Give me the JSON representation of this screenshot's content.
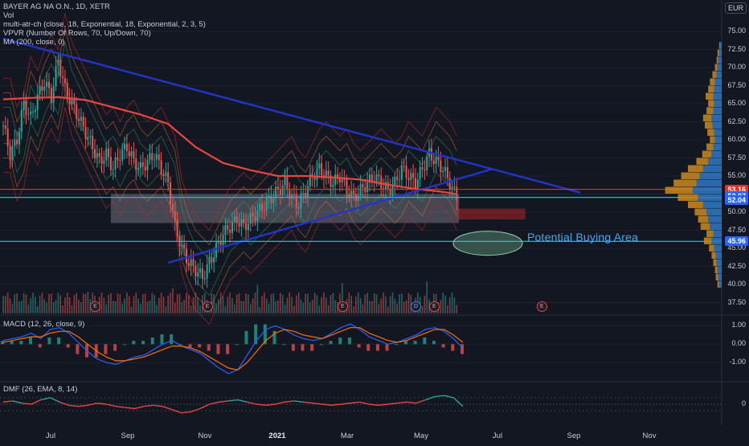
{
  "chart_data": [
    {
      "type": "candlestick",
      "pane": "price",
      "legend": [
        "BAYER AG NA O.N., 1D, XETR",
        "Vol",
        "multi-atr-ch (close, 18, Exponential, 18, Exponential, 2, 3, 5)",
        "VPVR (Number Of Rows, 70, Up/Down, 70)",
        "MA (200, close, 0)"
      ],
      "currency": "EUR",
      "ylim": [
        36,
        78
      ],
      "y_ticks": [
        "37.50",
        "40.00",
        "42.50",
        "45.00",
        "47.50",
        "50.00",
        "52.50",
        "55.00",
        "57.50",
        "60.00",
        "62.50",
        "65.00",
        "67.50",
        "70.00",
        "72.50",
        "75.00"
      ],
      "x_ticks": [
        {
          "label": "Jul",
          "bold": false
        },
        {
          "label": "Sep",
          "bold": false
        },
        {
          "label": "Nov",
          "bold": false
        },
        {
          "label": "2021",
          "bold": true
        },
        {
          "label": "Mar",
          "bold": false
        },
        {
          "label": "May",
          "bold": false
        },
        {
          "label": "Jul",
          "bold": false
        },
        {
          "label": "Sep",
          "bold": false
        },
        {
          "label": "Nov",
          "bold": false
        }
      ],
      "price_labels": [
        {
          "value": "53.16",
          "color": "#e03131"
        },
        {
          "value": "52.07",
          "color": "#2962ff"
        },
        {
          "value": "52.04",
          "color": "#2962ff"
        },
        {
          "value": "45.96",
          "color": "#2962ff"
        }
      ],
      "close_path": [
        {
          "t": 0,
          "v": 62
        },
        {
          "t": 3,
          "v": 58
        },
        {
          "t": 6,
          "v": 60
        },
        {
          "t": 9,
          "v": 65
        },
        {
          "t": 12,
          "v": 63
        },
        {
          "t": 15,
          "v": 66
        },
        {
          "t": 18,
          "v": 68
        },
        {
          "t": 21,
          "v": 66
        },
        {
          "t": 24,
          "v": 71
        },
        {
          "t": 27,
          "v": 67
        },
        {
          "t": 30,
          "v": 65
        },
        {
          "t": 33,
          "v": 63
        },
        {
          "t": 36,
          "v": 61
        },
        {
          "t": 39,
          "v": 59
        },
        {
          "t": 42,
          "v": 57
        },
        {
          "t": 45,
          "v": 58
        },
        {
          "t": 48,
          "v": 56
        },
        {
          "t": 51,
          "v": 58
        },
        {
          "t": 54,
          "v": 59
        },
        {
          "t": 57,
          "v": 57
        },
        {
          "t": 60,
          "v": 56
        },
        {
          "t": 63,
          "v": 57
        },
        {
          "t": 66,
          "v": 58
        },
        {
          "t": 69,
          "v": 56
        },
        {
          "t": 72,
          "v": 54
        },
        {
          "t": 75,
          "v": 48
        },
        {
          "t": 78,
          "v": 45
        },
        {
          "t": 81,
          "v": 43
        },
        {
          "t": 84,
          "v": 42
        },
        {
          "t": 87,
          "v": 41
        },
        {
          "t": 90,
          "v": 43
        },
        {
          "t": 93,
          "v": 45
        },
        {
          "t": 96,
          "v": 47
        },
        {
          "t": 99,
          "v": 48
        },
        {
          "t": 102,
          "v": 49
        },
        {
          "t": 105,
          "v": 48
        },
        {
          "t": 108,
          "v": 49
        },
        {
          "t": 111,
          "v": 50
        },
        {
          "t": 114,
          "v": 51
        },
        {
          "t": 117,
          "v": 52
        },
        {
          "t": 120,
          "v": 53
        },
        {
          "t": 123,
          "v": 54
        },
        {
          "t": 126,
          "v": 52
        },
        {
          "t": 129,
          "v": 51
        },
        {
          "t": 132,
          "v": 53
        },
        {
          "t": 135,
          "v": 55
        },
        {
          "t": 138,
          "v": 56
        },
        {
          "t": 141,
          "v": 55
        },
        {
          "t": 144,
          "v": 54
        },
        {
          "t": 147,
          "v": 55
        },
        {
          "t": 150,
          "v": 53
        },
        {
          "t": 153,
          "v": 52
        },
        {
          "t": 156,
          "v": 53
        },
        {
          "t": 159,
          "v": 54
        },
        {
          "t": 162,
          "v": 55
        },
        {
          "t": 165,
          "v": 54
        },
        {
          "t": 168,
          "v": 53
        },
        {
          "t": 171,
          "v": 54
        },
        {
          "t": 174,
          "v": 56
        },
        {
          "t": 177,
          "v": 55
        },
        {
          "t": 180,
          "v": 54
        },
        {
          "t": 183,
          "v": 56
        },
        {
          "t": 186,
          "v": 58
        },
        {
          "t": 189,
          "v": 57
        },
        {
          "t": 192,
          "v": 56
        },
        {
          "t": 195,
          "v": 54
        },
        {
          "t": 198,
          "v": 52
        }
      ],
      "ma200_path": [
        {
          "t": 0,
          "v": 65.6
        },
        {
          "t": 12,
          "v": 65.8
        },
        {
          "t": 24,
          "v": 65.9
        },
        {
          "t": 36,
          "v": 65.5
        },
        {
          "t": 48,
          "v": 64.5
        },
        {
          "t": 60,
          "v": 63.5
        },
        {
          "t": 72,
          "v": 62.2
        },
        {
          "t": 84,
          "v": 59
        },
        {
          "t": 96,
          "v": 56.8
        },
        {
          "t": 108,
          "v": 55.8
        },
        {
          "t": 120,
          "v": 55
        },
        {
          "t": 132,
          "v": 55
        },
        {
          "t": 144,
          "v": 54.8
        },
        {
          "t": 156,
          "v": 54.5
        },
        {
          "t": 168,
          "v": 53.8
        },
        {
          "t": 180,
          "v": 53.2
        },
        {
          "t": 192,
          "v": 52.8
        },
        {
          "t": 198,
          "v": 52.5
        }
      ],
      "trendlines": [
        {
          "name": "downtrend",
          "points": [
            {
              "t": 0,
              "v": 74
            },
            {
              "t": 252,
              "v": 52.7
            }
          ],
          "color": "#2136c9"
        },
        {
          "name": "uptrend",
          "points": [
            {
              "t": 72,
              "v": 43
            },
            {
              "t": 214,
              "v": 56
            }
          ],
          "color": "#2136c9"
        }
      ],
      "horizontal_lines": [
        {
          "v": 53.16,
          "color": "#e03131"
        },
        {
          "v": 52.04,
          "color": "#1fb6d8"
        },
        {
          "v": 45.96,
          "color": "#1fb6d8"
        }
      ],
      "zones": [
        {
          "name": "support-zone",
          "t0": 47,
          "t1": 199,
          "v0": 48.5,
          "v1": 52.5,
          "color": "rgba(200,200,210,0.28)"
        },
        {
          "name": "red-zone",
          "t0": 198,
          "t1": 228,
          "v0": 49,
          "v1": 50.5,
          "color": "rgba(200,40,40,0.45)"
        }
      ],
      "annotation": "Potential Buying Area",
      "event_markers": [
        {
          "t": 40,
          "label": "E",
          "kind": "earnings"
        },
        {
          "t": 89,
          "label": "E",
          "kind": "earnings"
        },
        {
          "t": 148,
          "label": "E",
          "kind": "earnings"
        },
        {
          "t": 180,
          "label": "D",
          "kind": "dividend"
        },
        {
          "t": 188,
          "label": "E",
          "kind": "earnings"
        },
        {
          "t": 235,
          "label": "E",
          "kind": "earnings"
        }
      ],
      "vpvr": [
        {
          "v": 73,
          "up": 2,
          "down": 1
        },
        {
          "v": 72,
          "up": 3,
          "down": 2
        },
        {
          "v": 71,
          "up": 4,
          "down": 2
        },
        {
          "v": 70,
          "up": 5,
          "down": 3
        },
        {
          "v": 69,
          "up": 6,
          "down": 5
        },
        {
          "v": 68,
          "up": 8,
          "down": 6
        },
        {
          "v": 67,
          "up": 9,
          "down": 7
        },
        {
          "v": 66,
          "up": 10,
          "down": 9
        },
        {
          "v": 65,
          "up": 9,
          "down": 7
        },
        {
          "v": 64,
          "up": 10,
          "down": 8
        },
        {
          "v": 63,
          "up": 12,
          "down": 10
        },
        {
          "v": 62,
          "up": 11,
          "down": 9
        },
        {
          "v": 61,
          "up": 9,
          "down": 8
        },
        {
          "v": 60,
          "up": 8,
          "down": 6
        },
        {
          "v": 59,
          "up": 10,
          "down": 8
        },
        {
          "v": 58,
          "up": 12,
          "down": 11
        },
        {
          "v": 57,
          "up": 16,
          "down": 14
        },
        {
          "v": 56,
          "up": 22,
          "down": 18
        },
        {
          "v": 55,
          "up": 26,
          "down": 22
        },
        {
          "v": 54,
          "up": 30,
          "down": 27
        },
        {
          "v": 53,
          "up": 34,
          "down": 33
        },
        {
          "v": 52,
          "up": 28,
          "down": 24
        },
        {
          "v": 51,
          "up": 22,
          "down": 18
        },
        {
          "v": 50,
          "up": 18,
          "down": 14
        },
        {
          "v": 49,
          "up": 16,
          "down": 12
        },
        {
          "v": 48,
          "up": 14,
          "down": 11
        },
        {
          "v": 47,
          "up": 10,
          "down": 8
        },
        {
          "v": 46,
          "up": 12,
          "down": 9
        },
        {
          "v": 45,
          "up": 9,
          "down": 6
        },
        {
          "v": 44,
          "up": 7,
          "down": 5
        },
        {
          "v": 43,
          "up": 6,
          "down": 4
        },
        {
          "v": 42,
          "up": 5,
          "down": 3
        },
        {
          "v": 41,
          "up": 4,
          "down": 3
        },
        {
          "v": 40,
          "up": 3,
          "down": 2
        }
      ]
    },
    {
      "type": "line",
      "pane": "macd",
      "legend": "MACD (12, 26, close, 9)",
      "ylim": [
        -2,
        1.5
      ],
      "y_ticks": [
        "1.00",
        "0.00",
        "-1.00"
      ],
      "y_tick_values": [
        1,
        0,
        -1
      ],
      "series": [
        {
          "values": [
            0.2,
            0.3,
            0.4,
            0.6,
            0.3,
            0.8,
            0.9,
            0.6,
            0.1,
            -0.4,
            -0.8,
            -1.0,
            -1.1,
            -0.9,
            -0.7,
            -0.6,
            -0.3,
            0.0,
            0.2,
            -0.1,
            -0.3,
            -0.5,
            -0.9,
            -1.3,
            -1.6,
            -1.4,
            -0.6,
            0.2,
            0.8,
            1.0,
            0.8,
            0.5,
            0.3,
            0.2,
            0.3,
            0.6,
            0.9,
            1.1,
            0.8,
            0.4,
            0.2,
            0.0,
            0.1,
            0.3,
            0.5,
            0.8,
            0.9,
            0.7,
            0.3,
            -0.2
          ]
        },
        {
          "values": [
            0.1,
            0.2,
            0.3,
            0.4,
            0.4,
            0.6,
            0.7,
            0.7,
            0.4,
            0.0,
            -0.4,
            -0.7,
            -0.9,
            -0.9,
            -0.8,
            -0.7,
            -0.5,
            -0.3,
            -0.1,
            -0.1,
            -0.2,
            -0.4,
            -0.7,
            -1.0,
            -1.3,
            -1.4,
            -1.0,
            -0.4,
            0.2,
            0.6,
            0.8,
            0.7,
            0.5,
            0.4,
            0.3,
            0.5,
            0.7,
            0.9,
            0.9,
            0.6,
            0.4,
            0.2,
            0.1,
            0.2,
            0.4,
            0.6,
            0.8,
            0.8,
            0.5,
            0.1
          ]
        }
      ]
    },
    {
      "type": "line",
      "pane": "dmf",
      "legend": "DMF (26, EMA, 8, 14)",
      "ylim": [
        -1,
        1
      ],
      "y_ticks": [
        "0"
      ],
      "y_tick_values": [
        0
      ],
      "series": [
        {
          "values": [
            0.1,
            0.15,
            0.05,
            0.0,
            0.2,
            0.3,
            0.1,
            -0.05,
            -0.1,
            -0.05,
            0.05,
            0.0,
            -0.1,
            -0.15,
            -0.2,
            -0.1,
            -0.05,
            -0.1,
            -0.25,
            -0.4,
            -0.35,
            -0.2,
            0.0,
            0.1,
            0.15,
            0.2,
            0.1,
            0.0,
            -0.05,
            0.0,
            0.1,
            0.15,
            0.1,
            0.05,
            0.0,
            -0.05,
            0.0,
            0.05,
            0.1,
            0.0,
            -0.05,
            0.0,
            0.05,
            0.1,
            0.05,
            0.2,
            0.35,
            0.4,
            0.3,
            -0.1
          ]
        }
      ]
    }
  ]
}
